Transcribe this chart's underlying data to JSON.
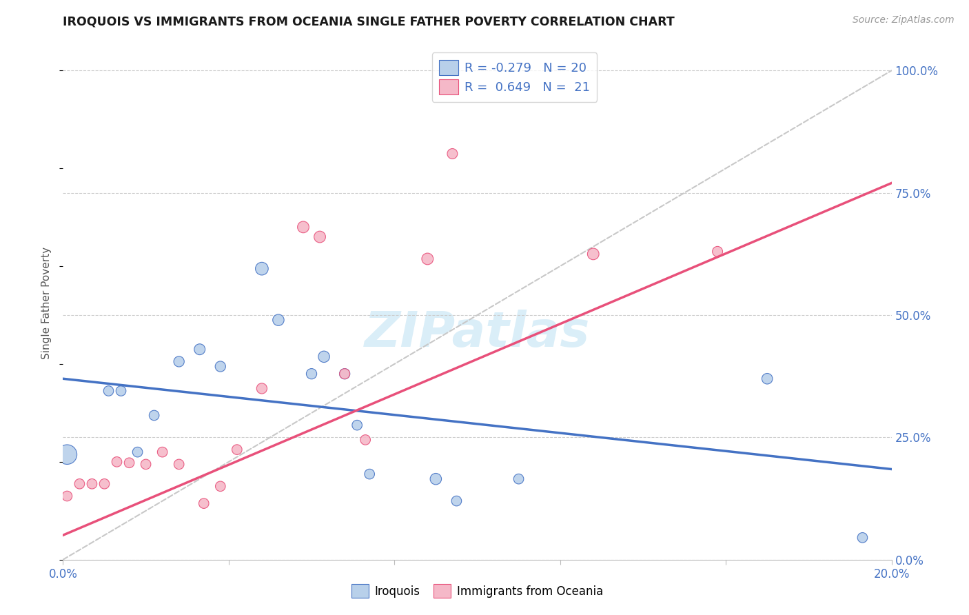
{
  "title": "IROQUOIS VS IMMIGRANTS FROM OCEANIA SINGLE FATHER POVERTY CORRELATION CHART",
  "source": "Source: ZipAtlas.com",
  "ylabel": "Single Father Poverty",
  "right_yticks": [
    0.0,
    0.25,
    0.5,
    0.75,
    1.0
  ],
  "right_yticklabels": [
    "0.0%",
    "25.0%",
    "50.0%",
    "75.0%",
    "100.0%"
  ],
  "legend_label1": "Iroquois",
  "legend_label2": "Immigrants from Oceania",
  "R1": -0.279,
  "N1": 20,
  "R2": 0.649,
  "N2": 21,
  "color1": "#b8d0ea",
  "color2": "#f5b8c8",
  "line_color1": "#4472c4",
  "line_color2": "#e8507a",
  "watermark": "ZIPatlas",
  "watermark_color": "#daeef8",
  "xlim": [
    0.0,
    0.2
  ],
  "ylim": [
    0.0,
    1.05
  ],
  "background": "#ffffff",
  "blue_line_x": [
    0.0,
    0.2
  ],
  "blue_line_y": [
    0.37,
    0.185
  ],
  "pink_line_x": [
    0.0,
    0.2
  ],
  "pink_line_y": [
    0.05,
    0.77
  ],
  "iroquois_x": [
    0.001,
    0.011,
    0.014,
    0.018,
    0.022,
    0.028,
    0.033,
    0.038,
    0.048,
    0.052,
    0.06,
    0.063,
    0.068,
    0.071,
    0.074,
    0.09,
    0.095,
    0.11,
    0.17,
    0.193
  ],
  "iroquois_y": [
    0.215,
    0.345,
    0.345,
    0.22,
    0.295,
    0.405,
    0.43,
    0.395,
    0.595,
    0.49,
    0.38,
    0.415,
    0.38,
    0.275,
    0.175,
    0.165,
    0.12,
    0.165,
    0.37,
    0.045
  ],
  "iroquois_size": [
    420,
    110,
    110,
    110,
    110,
    120,
    130,
    120,
    180,
    140,
    120,
    140,
    120,
    110,
    110,
    140,
    110,
    110,
    125,
    110
  ],
  "oceania_x": [
    0.001,
    0.004,
    0.007,
    0.01,
    0.013,
    0.016,
    0.02,
    0.024,
    0.028,
    0.034,
    0.038,
    0.042,
    0.048,
    0.058,
    0.062,
    0.068,
    0.073,
    0.088,
    0.094,
    0.128,
    0.158
  ],
  "oceania_y": [
    0.13,
    0.155,
    0.155,
    0.155,
    0.2,
    0.198,
    0.195,
    0.22,
    0.195,
    0.115,
    0.15,
    0.225,
    0.35,
    0.68,
    0.66,
    0.38,
    0.245,
    0.615,
    0.83,
    0.625,
    0.63
  ],
  "oceania_size": [
    110,
    110,
    110,
    110,
    110,
    110,
    110,
    110,
    110,
    110,
    110,
    110,
    120,
    145,
    145,
    115,
    110,
    145,
    115,
    145,
    115
  ],
  "xticks": [
    0.0,
    0.04,
    0.08,
    0.12,
    0.16,
    0.2
  ],
  "xticklabels": [
    "0.0%",
    "",
    "",
    "",
    "",
    "20.0%"
  ]
}
